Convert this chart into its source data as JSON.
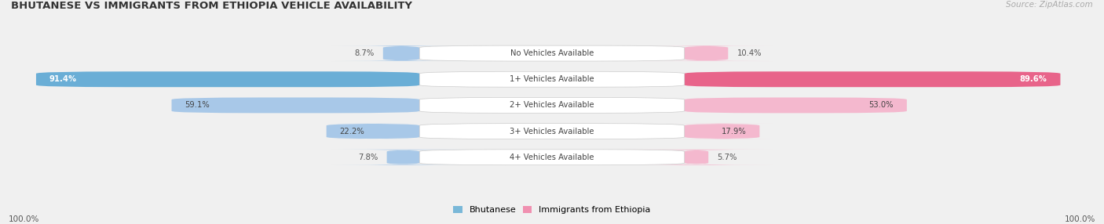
{
  "title": "BHUTANESE VS IMMIGRANTS FROM ETHIOPIA VEHICLE AVAILABILITY",
  "source": "Source: ZipAtlas.com",
  "categories": [
    "No Vehicles Available",
    "1+ Vehicles Available",
    "2+ Vehicles Available",
    "3+ Vehicles Available",
    "4+ Vehicles Available"
  ],
  "bhutanese_values": [
    8.7,
    91.4,
    59.1,
    22.2,
    7.8
  ],
  "ethiopia_values": [
    10.4,
    89.6,
    53.0,
    17.9,
    5.7
  ],
  "blue_light": "#a8c8e8",
  "blue_dark": "#6aaed6",
  "pink_light": "#f4b8ce",
  "pink_dark": "#e8648a",
  "row_bg_light": "#f7f7fa",
  "row_bg_dark": "#ededf2",
  "bottom_labels": [
    "100.0%",
    "100.0%"
  ],
  "legend_labels": [
    "Bhutanese",
    "Immigrants from Ethiopia"
  ],
  "legend_blue": "#7ab8d8",
  "legend_pink": "#f090b0",
  "center_label_bg": "#ffffff",
  "label_color_dark": "#555555",
  "label_color_white": "#ffffff"
}
